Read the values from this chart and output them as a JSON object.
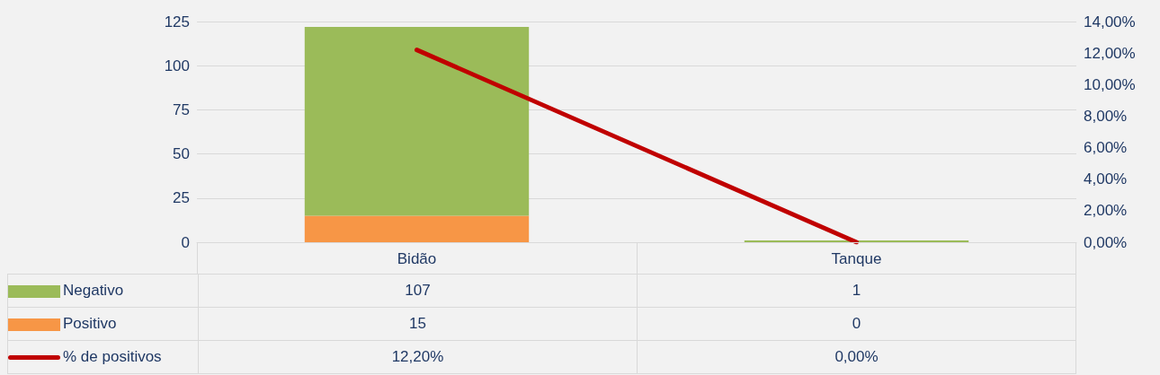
{
  "chart_data": {
    "type": "bar",
    "stacked": true,
    "categories": [
      "Bidão",
      "Tanque"
    ],
    "series": [
      {
        "name": "Positivo",
        "color": "#f79646",
        "values": [
          15,
          0
        ],
        "value_labels": [
          "15",
          "0"
        ]
      },
      {
        "name": "Negativo",
        "color": "#9bbb59",
        "values": [
          107,
          1
        ],
        "value_labels": [
          "107",
          "1"
        ]
      },
      {
        "name": "% de positivos",
        "type": "line",
        "axis": "y2",
        "color": "#c00000",
        "values": [
          12.2,
          0
        ],
        "value_labels": [
          "12,20%",
          "0,00%"
        ]
      }
    ],
    "ylim": [
      0,
      125
    ],
    "yticks": [
      0,
      25,
      50,
      75,
      100,
      125
    ],
    "y2lim": [
      0,
      14
    ],
    "y2ticks": [
      {
        "value": 0,
        "label": "0,00%"
      },
      {
        "value": 2,
        "label": "2,00%"
      },
      {
        "value": 4,
        "label": "4,00%"
      },
      {
        "value": 6,
        "label": "6,00%"
      },
      {
        "value": 8,
        "label": "8,00%"
      },
      {
        "value": 10,
        "label": "10,00%"
      },
      {
        "value": 12,
        "label": "12,00%"
      },
      {
        "value": 14,
        "label": "14,00%"
      }
    ],
    "grid": "y",
    "legend": "bottom",
    "marker": "none"
  }
}
